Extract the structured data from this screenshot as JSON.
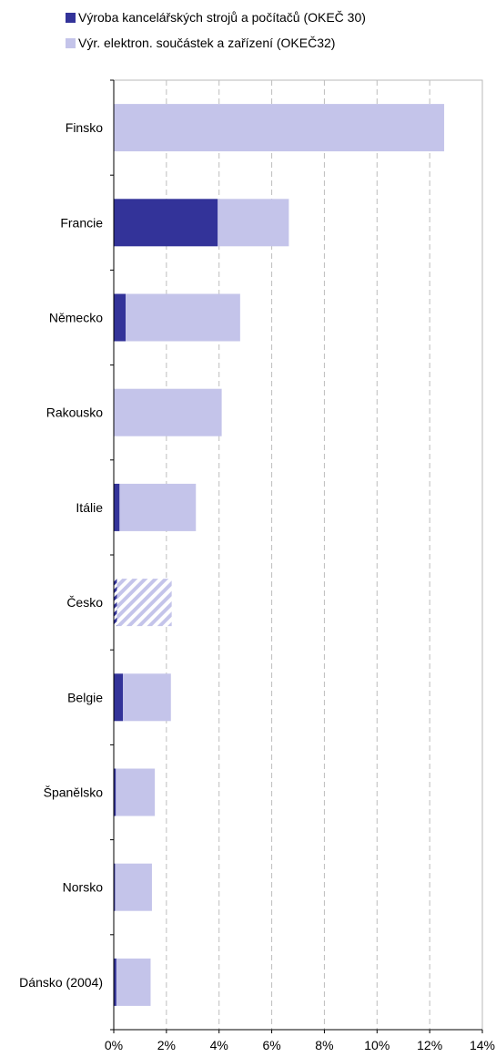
{
  "chart_data": {
    "type": "bar",
    "orientation": "horizontal",
    "stacked": true,
    "categories": [
      "Finsko",
      "Francie",
      "Německo",
      "Rakousko",
      "Itálie",
      "Česko",
      "Belgie",
      "Španělsko",
      "Norsko",
      "Dánsko (2004)"
    ],
    "series": [
      {
        "name": "Výroba kancelářských strojů a počítačů (OKEČ 30)",
        "color": "#333399",
        "values": [
          0.0,
          3.95,
          0.45,
          0.0,
          0.22,
          0.12,
          0.35,
          0.08,
          0.05,
          0.1
        ]
      },
      {
        "name": "Výr. elektron. součástek a zařízení (OKEČ32)",
        "color": "#c4c4ea",
        "values": [
          12.55,
          2.7,
          4.35,
          4.1,
          2.9,
          2.08,
          1.82,
          1.48,
          1.4,
          1.3
        ]
      }
    ],
    "hatched_category": "Česko",
    "xlim": [
      0,
      14
    ],
    "xticks": [
      "0%",
      "2%",
      "4%",
      "6%",
      "8%",
      "10%",
      "12%",
      "14%"
    ],
    "grid": "vertical dashed",
    "legend_position": "top",
    "title": "",
    "xlabel": "",
    "ylabel": ""
  }
}
